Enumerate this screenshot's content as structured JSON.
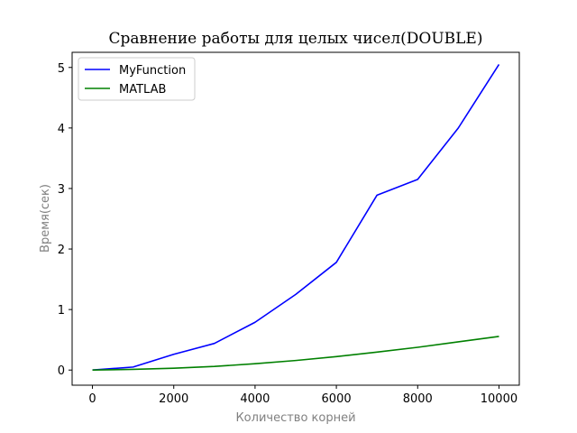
{
  "chart_data": {
    "type": "line",
    "title": "Сравнение работы для целых чисел(DOUBLE)",
    "xlabel": "Количество корней",
    "ylabel": "Время(сек)",
    "xlim": [
      -500,
      10500
    ],
    "ylim": [
      -0.25,
      5.25
    ],
    "xticks": [
      0,
      2000,
      4000,
      6000,
      8000,
      10000
    ],
    "yticks": [
      0,
      1,
      2,
      3,
      4,
      5
    ],
    "xtick_labels": [
      "0",
      "2000",
      "4000",
      "6000",
      "8000",
      "10000"
    ],
    "ytick_labels": [
      "0",
      "1",
      "2",
      "3",
      "4",
      "5"
    ],
    "grid": false,
    "legend_position": "top-left",
    "x": [
      0,
      1000,
      2000,
      3000,
      4000,
      5000,
      6000,
      7000,
      8000,
      9000,
      10000
    ],
    "series": [
      {
        "name": "MyFunction",
        "color": "#0000ff",
        "values": [
          0.0,
          0.05,
          0.26,
          0.44,
          0.79,
          1.25,
          1.78,
          2.89,
          3.15,
          4.0,
          5.05
        ]
      },
      {
        "name": "MATLAB",
        "color": "#008000",
        "values": [
          0.0,
          0.012,
          0.03,
          0.06,
          0.105,
          0.158,
          0.223,
          0.297,
          0.376,
          0.466,
          0.556
        ]
      }
    ]
  }
}
